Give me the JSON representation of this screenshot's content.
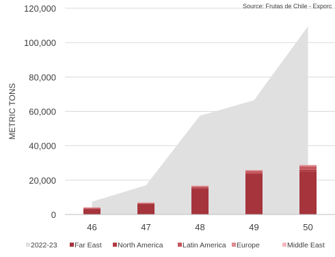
{
  "source_note": "Source: Frutas de Chile - Exporc",
  "chart_data": {
    "type": "stacked bar + area",
    "ylabel": "METRIC TONS",
    "xlabel": "",
    "ylim": [
      0,
      120000
    ],
    "y_ticks": [
      "0",
      "20,000",
      "40,000",
      "60,000",
      "80,000",
      "100,000",
      "120,000"
    ],
    "y_tick_values": [
      0,
      20000,
      40000,
      60000,
      80000,
      100000,
      120000
    ],
    "categories": [
      "46",
      "47",
      "48",
      "49",
      "50"
    ],
    "area_series": {
      "name": "2022-23",
      "color": "#e0e0e0",
      "values": [
        7500,
        17000,
        57500,
        66500,
        109500
      ]
    },
    "series": [
      {
        "name": "Far East",
        "color": "#a5343c",
        "values": [
          3000,
          6000,
          15000,
          23500,
          25000
        ]
      },
      {
        "name": "North America",
        "color": "#b23a44",
        "values": [
          300,
          300,
          500,
          500,
          1000
        ]
      },
      {
        "name": "Latin America",
        "color": "#c4585f",
        "values": [
          500,
          300,
          700,
          1300,
          2000
        ]
      },
      {
        "name": "Europe",
        "color": "#df8a90",
        "values": [
          300,
          300,
          500,
          500,
          700
        ]
      },
      {
        "name": "Middle East",
        "color": "#f4b8bc",
        "values": [
          100,
          100,
          100,
          100,
          200
        ]
      }
    ],
    "legend_position": "bottom",
    "grid": "horizontal"
  }
}
